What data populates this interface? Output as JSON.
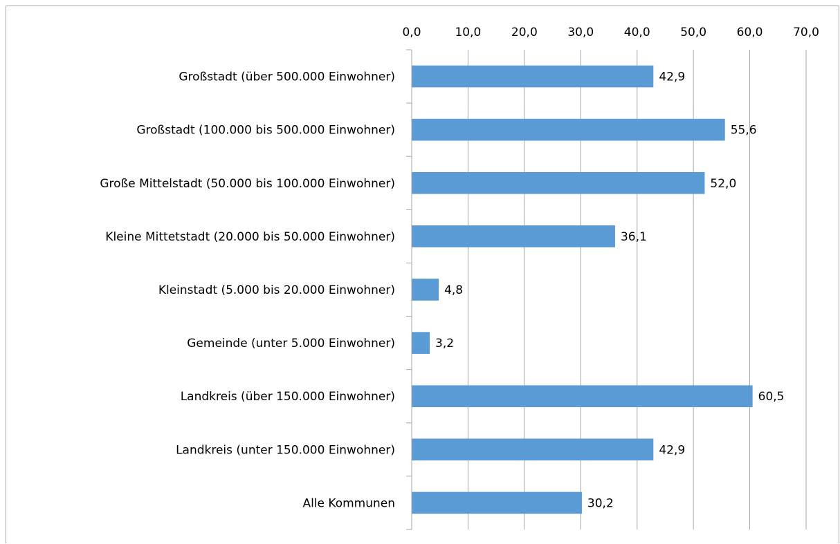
{
  "chart_data": {
    "type": "bar",
    "orientation": "horizontal",
    "categories": [
      "Großstadt (über 500.000 Einwohner)",
      "Großstadt (100.000 bis 500.000 Einwohner)",
      "Große Mittelstadt (50.000 bis 100.000 Einwohner)",
      "Kleine Mittetstadt (20.000 bis 50.000 Einwohner)",
      "Kleinstadt (5.000 bis 20.000 Einwohner)",
      "Gemeinde (unter 5.000 Einwohner)",
      "Landkreis (über 150.000 Einwohner)",
      "Landkreis (unter 150.000 Einwohner)",
      "Alle Kommunen"
    ],
    "values": [
      42.9,
      55.6,
      52.0,
      36.1,
      4.8,
      3.2,
      60.5,
      42.9,
      30.2
    ],
    "value_labels": [
      "42,9",
      "55,6",
      "52,0",
      "36,1",
      "4,8",
      "3,2",
      "60,5",
      "42,9",
      "30,2"
    ],
    "xlim": [
      0,
      70
    ],
    "x_ticks": [
      "0,0",
      "10,0",
      "20,0",
      "30,0",
      "40,0",
      "50,0",
      "60,0",
      "70,0"
    ],
    "x_axis_position": "top",
    "grid": true,
    "legend": "none",
    "title": "",
    "xlabel": "",
    "ylabel": "",
    "colors": {
      "bar": "#5b9bd5",
      "grid": "#a6a6a6",
      "axis": "#a6a6a6"
    }
  }
}
